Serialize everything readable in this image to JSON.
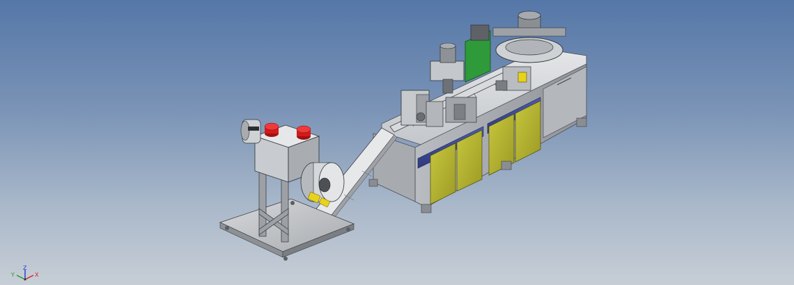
{
  "viewport": {
    "background_top": "#5577a8",
    "background_bottom": "#c7ced6"
  },
  "model": {
    "frame_color": "#c9ccd0",
    "panel_yellow": "#b9b836",
    "panel_blue": "#3f4e9a",
    "guard_green": "#2f9a3a",
    "knob_red": "#d31a1a",
    "accent_yellow": "#e8d21a"
  },
  "triad": {
    "x_label": "X",
    "y_label": "Y",
    "z_label": "Z",
    "x_color": "#d42424",
    "y_color": "#2c9a2c",
    "z_color": "#2a44c8"
  }
}
